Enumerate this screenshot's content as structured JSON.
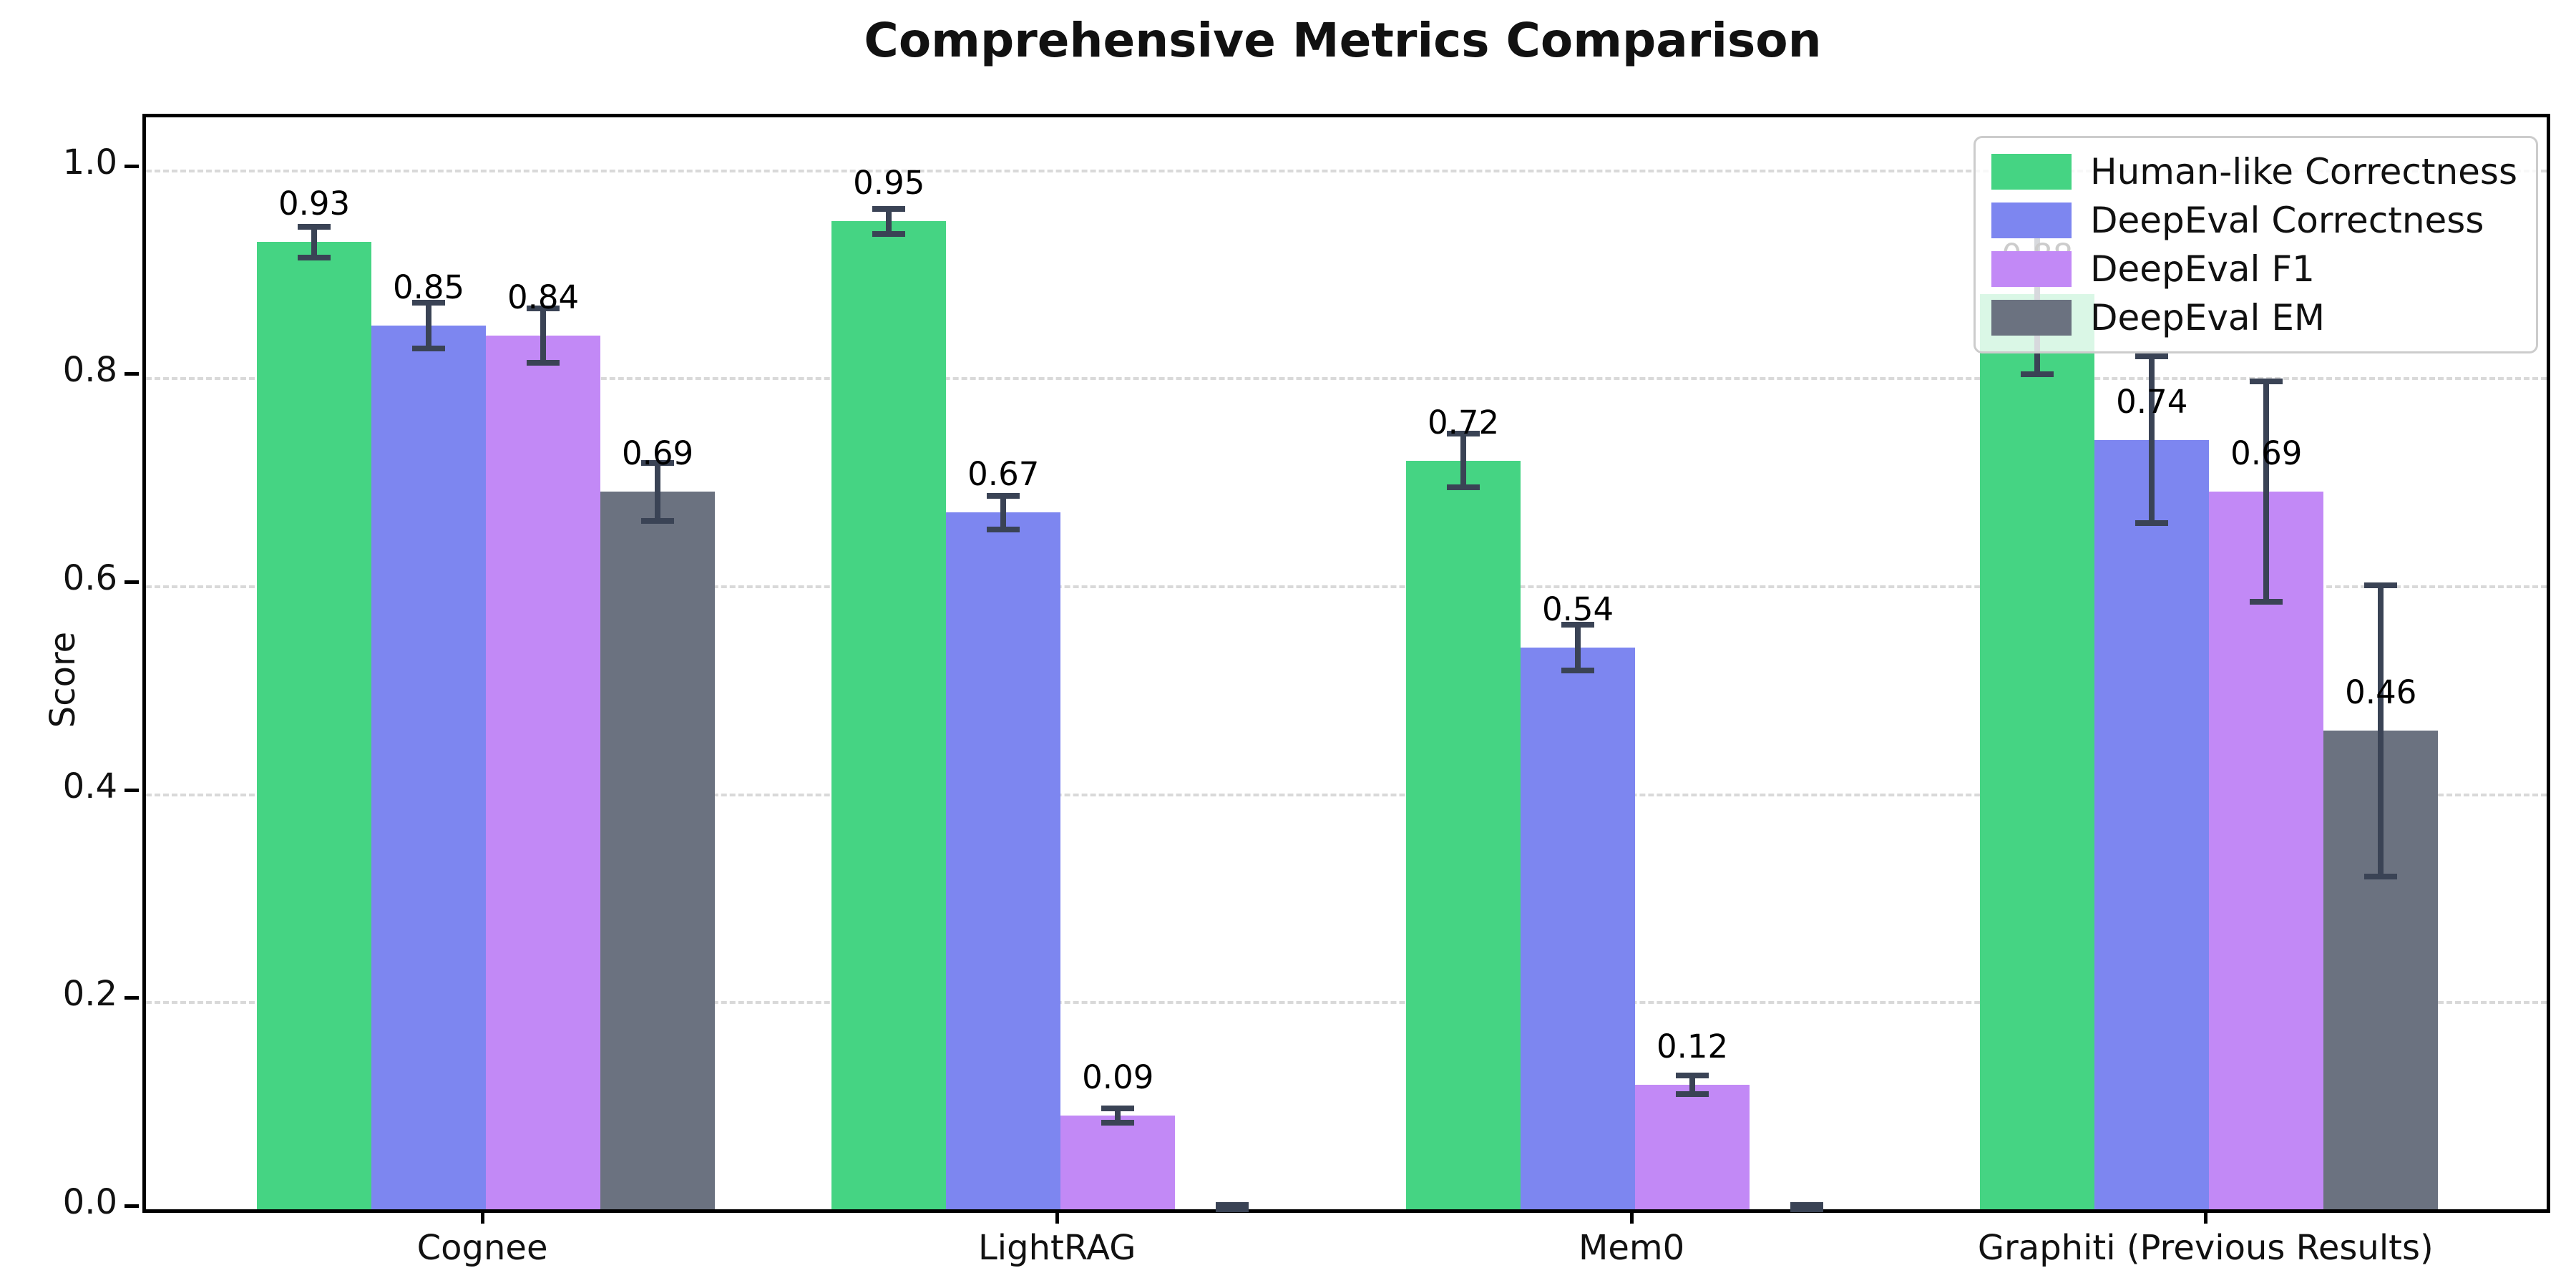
{
  "chart_data": {
    "type": "bar",
    "title": "Comprehensive Metrics Comparison",
    "xlabel": "",
    "ylabel": "Score",
    "categories": [
      "Cognee",
      "LightRAG",
      "Mem0",
      "Graphiti (Previous Results)"
    ],
    "series": [
      {
        "name": "Human-like Correctness",
        "color": "#45d483",
        "values": [
          0.93,
          0.95,
          0.72,
          0.88
        ],
        "errors": [
          0.015,
          0.012,
          0.026,
          0.077
        ],
        "labels": [
          "0.93",
          "0.95",
          "0.72",
          "0.88"
        ]
      },
      {
        "name": "DeepEval Correctness",
        "color": "#7d86f0",
        "values": [
          0.85,
          0.67,
          0.54,
          0.74
        ],
        "errors": [
          0.022,
          0.016,
          0.022,
          0.08
        ],
        "labels": [
          "0.85",
          "0.67",
          "0.54",
          "0.74"
        ]
      },
      {
        "name": "DeepEval F1",
        "color": "#c289f6",
        "values": [
          0.84,
          0.09,
          0.12,
          0.69
        ],
        "errors": [
          0.026,
          0.007,
          0.009,
          0.106
        ],
        "labels": [
          "0.84",
          "0.09",
          "0.12",
          "0.69"
        ]
      },
      {
        "name": "DeepEval EM",
        "color": "#6b7280",
        "values": [
          0.69,
          0.0,
          0.0,
          0.46
        ],
        "errors": [
          0.028,
          0.004,
          0.004,
          0.14
        ],
        "labels": [
          "0.69",
          "",
          "",
          "0.46"
        ]
      }
    ],
    "ytick_labels": [
      "0.0",
      "0.2",
      "0.4",
      "0.6",
      "0.8",
      "1.0"
    ],
    "yticks": [
      0.0,
      0.2,
      0.4,
      0.6,
      0.8,
      1.0
    ],
    "ylim": [
      0,
      1.05
    ],
    "grid": "horizontal-dashed",
    "gridline_color": "#d9d9d9",
    "error_bar_color": "#3a4355",
    "legend_position": "upper right",
    "legend_entries": [
      "Human-like Correctness",
      "DeepEval Correctness",
      "DeepEval F1",
      "DeepEval EM"
    ]
  }
}
